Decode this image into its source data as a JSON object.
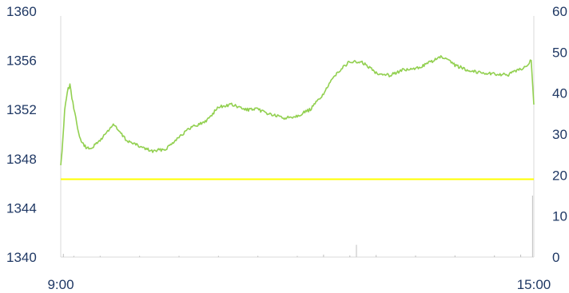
{
  "chart_data": {
    "type": "line",
    "title": "",
    "xlabel": "",
    "ylabel": "",
    "x_tick_labels": [
      "9:00",
      "15:00"
    ],
    "xlim": [
      "9:00",
      "15:00"
    ],
    "ylim_left": [
      1340,
      1360
    ],
    "yticks_left": [
      "1340",
      "1344",
      "1348",
      "1352",
      "1356",
      "1360"
    ],
    "ylim_right": [
      0,
      60
    ],
    "yticks_right": [
      "0",
      "10",
      "20",
      "30",
      "40",
      "50",
      "60"
    ],
    "grid": false,
    "legend": "none",
    "series": [
      {
        "type": "line",
        "axis": "left",
        "color": "#92d050",
        "x": [
          "9:00",
          "9:01",
          "9:03",
          "9:05",
          "9:07",
          "9:10",
          "9:15",
          "9:20",
          "9:25",
          "9:30",
          "9:40",
          "9:50",
          "10:00",
          "10:10",
          "10:20",
          "10:30",
          "10:40",
          "10:50",
          "11:00",
          "11:10",
          "11:20",
          "11:30",
          "11:40",
          "11:50",
          "12:00",
          "12:10",
          "12:20",
          "12:30",
          "12:40",
          "12:50",
          "13:00",
          "13:10",
          "13:20",
          "13:30",
          "13:40",
          "13:50",
          "14:00",
          "14:10",
          "14:20",
          "14:30",
          "14:40",
          "14:50",
          "14:55",
          "14:58",
          "15:00"
        ],
        "values": [
          1347.5,
          1348.5,
          1352.0,
          1353.5,
          1354.0,
          1352.0,
          1349.5,
          1348.8,
          1349.0,
          1349.5,
          1350.8,
          1349.5,
          1349.0,
          1348.6,
          1348.8,
          1349.8,
          1350.6,
          1351.0,
          1352.2,
          1352.4,
          1352.0,
          1352.0,
          1351.6,
          1351.3,
          1351.5,
          1352.0,
          1353.3,
          1355.0,
          1355.9,
          1355.8,
          1355.0,
          1354.8,
          1355.2,
          1355.3,
          1355.8,
          1356.3,
          1355.6,
          1355.2,
          1355.0,
          1354.9,
          1354.8,
          1355.3,
          1355.6,
          1356.0,
          1352.4
        ]
      },
      {
        "type": "line",
        "axis": "right",
        "color": "#ffff00",
        "x": [
          "9:00",
          "15:00"
        ],
        "values": [
          19.0,
          19.0
        ]
      },
      {
        "type": "bar",
        "axis": "right",
        "color": "#bfbfbf",
        "x": [
          "9:02",
          "9:10",
          "9:30",
          "10:00",
          "10:30",
          "11:00",
          "11:30",
          "12:00",
          "12:20",
          "12:40",
          "12:45",
          "13:00",
          "13:30",
          "14:00",
          "14:30",
          "14:50",
          "14:59"
        ],
        "values": [
          0.8,
          0.3,
          0.3,
          0.3,
          0.3,
          0.3,
          0.3,
          0.3,
          0.6,
          0.4,
          3.0,
          0.5,
          0.4,
          0.4,
          0.4,
          0.6,
          15.0
        ]
      }
    ]
  }
}
